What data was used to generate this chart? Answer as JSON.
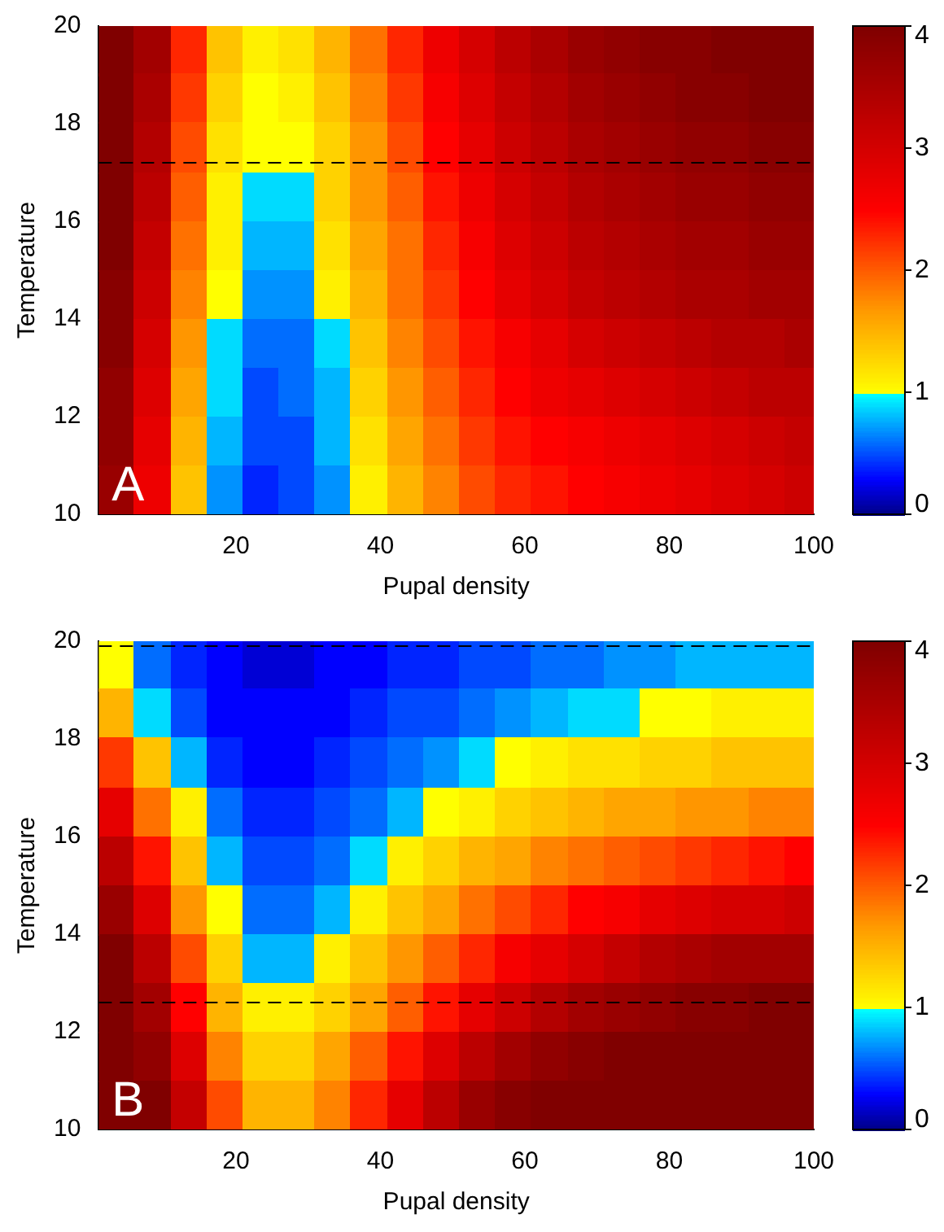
{
  "chart_data": [
    {
      "type": "heatmap",
      "xlabel": "Pupal density",
      "ylabel": "Temperature",
      "annotations": [
        "A"
      ],
      "x": [
        3.5,
        8.5,
        13.5,
        18.5,
        23.5,
        28.5,
        33.5,
        38.5,
        43.5,
        48.5,
        53.5,
        58.5,
        63.5,
        68.5,
        73.5,
        78.5,
        83.5,
        88.5,
        93.5,
        98.5
      ],
      "y": [
        19.5,
        18.5,
        17.5,
        16.5,
        15.5,
        14.5,
        13.5,
        12.5,
        11.5,
        10.5
      ],
      "cells": [
        [
          4,
          3.6,
          2.3,
          1.4,
          1.1,
          1.2,
          1.5,
          1.9,
          2.3,
          2.7,
          3.0,
          3.3,
          3.5,
          3.7,
          3.8,
          3.9,
          3.9,
          4,
          4,
          4
        ],
        [
          4,
          3.5,
          2.2,
          1.3,
          1.0,
          1.1,
          1.4,
          1.8,
          2.2,
          2.6,
          2.9,
          3.2,
          3.4,
          3.6,
          3.7,
          3.8,
          3.9,
          3.9,
          4,
          4
        ],
        [
          4,
          3.4,
          2.1,
          1.2,
          1.0,
          1.0,
          1.3,
          1.7,
          2.1,
          2.5,
          2.8,
          3.1,
          3.3,
          3.5,
          3.6,
          3.7,
          3.8,
          3.8,
          3.9,
          3.9
        ],
        [
          4,
          3.3,
          2.0,
          1.1,
          0.9,
          0.9,
          1.3,
          1.7,
          2.0,
          2.4,
          2.7,
          3.0,
          3.2,
          3.4,
          3.5,
          3.6,
          3.7,
          3.7,
          3.8,
          3.8
        ],
        [
          4,
          3.2,
          1.9,
          1.1,
          0.8,
          0.8,
          1.2,
          1.6,
          1.9,
          2.3,
          2.6,
          2.9,
          3.1,
          3.3,
          3.4,
          3.5,
          3.6,
          3.6,
          3.7,
          3.7
        ],
        [
          3.9,
          3.1,
          1.8,
          1.0,
          0.7,
          0.7,
          1.1,
          1.5,
          1.9,
          2.2,
          2.5,
          2.8,
          3.0,
          3.2,
          3.3,
          3.4,
          3.5,
          3.5,
          3.6,
          3.6
        ],
        [
          3.9,
          3.0,
          1.7,
          0.9,
          0.6,
          0.6,
          0.9,
          1.4,
          1.8,
          2.1,
          2.4,
          2.6,
          2.8,
          3.0,
          3.1,
          3.2,
          3.3,
          3.4,
          3.4,
          3.5
        ],
        [
          3.8,
          2.9,
          1.6,
          0.9,
          0.5,
          0.6,
          0.8,
          1.3,
          1.7,
          2.0,
          2.3,
          2.5,
          2.7,
          2.8,
          2.9,
          3.0,
          3.1,
          3.2,
          3.3,
          3.3
        ],
        [
          3.8,
          2.8,
          1.5,
          0.8,
          0.5,
          0.5,
          0.8,
          1.2,
          1.6,
          1.9,
          2.2,
          2.4,
          2.5,
          2.6,
          2.7,
          2.8,
          2.9,
          3.0,
          3.1,
          3.2
        ],
        [
          3.7,
          2.7,
          1.4,
          0.7,
          0.4,
          0.5,
          0.7,
          1.1,
          1.5,
          1.8,
          2.1,
          2.3,
          2.4,
          2.5,
          2.6,
          2.7,
          2.8,
          2.9,
          3.0,
          3.1
        ]
      ],
      "xlim": [
        1,
        100
      ],
      "xticks": [
        20,
        40,
        60,
        80,
        100
      ],
      "ylim": [
        10,
        20
      ],
      "yticks": [
        10,
        12,
        14,
        16,
        18,
        20
      ],
      "clim": [
        0,
        4
      ],
      "cticks": [
        0,
        1,
        2,
        3,
        4
      ],
      "ref_lines": [
        {
          "axis": "y",
          "value": 17.2,
          "line_style": "dashed",
          "color": "#000000"
        }
      ]
    },
    {
      "type": "heatmap",
      "xlabel": "Pupal density",
      "ylabel": "Temperature",
      "annotations": [
        "B"
      ],
      "x": [
        3.5,
        8.5,
        13.5,
        18.5,
        23.5,
        28.5,
        33.5,
        38.5,
        43.5,
        48.5,
        53.5,
        58.5,
        63.5,
        68.5,
        73.5,
        78.5,
        83.5,
        88.5,
        93.5,
        98.5
      ],
      "y": [
        19.5,
        18.5,
        17.5,
        16.5,
        15.5,
        14.5,
        13.5,
        12.5,
        11.5,
        10.5
      ],
      "cells": [
        [
          1.0,
          0.6,
          0.4,
          0.3,
          0.2,
          0.2,
          0.3,
          0.3,
          0.4,
          0.4,
          0.5,
          0.5,
          0.6,
          0.6,
          0.7,
          0.7,
          0.8,
          0.8,
          0.8,
          0.8
        ],
        [
          1.5,
          0.9,
          0.5,
          0.3,
          0.3,
          0.3,
          0.3,
          0.4,
          0.5,
          0.5,
          0.6,
          0.7,
          0.8,
          0.9,
          0.9,
          1.0,
          1.0,
          1.1,
          1.1,
          1.1
        ],
        [
          2.2,
          1.4,
          0.8,
          0.4,
          0.3,
          0.3,
          0.4,
          0.5,
          0.6,
          0.7,
          0.9,
          1.0,
          1.1,
          1.2,
          1.2,
          1.3,
          1.3,
          1.4,
          1.4,
          1.4
        ],
        [
          2.8,
          1.9,
          1.1,
          0.6,
          0.4,
          0.4,
          0.5,
          0.6,
          0.8,
          1.0,
          1.1,
          1.3,
          1.4,
          1.5,
          1.6,
          1.6,
          1.7,
          1.7,
          1.8,
          1.8
        ],
        [
          3.3,
          2.4,
          1.4,
          0.8,
          0.5,
          0.5,
          0.6,
          0.9,
          1.1,
          1.3,
          1.5,
          1.6,
          1.8,
          1.9,
          2.0,
          2.1,
          2.2,
          2.3,
          2.4,
          2.5
        ],
        [
          3.7,
          2.9,
          1.7,
          1.0,
          0.6,
          0.6,
          0.8,
          1.1,
          1.4,
          1.6,
          1.9,
          2.1,
          2.3,
          2.5,
          2.6,
          2.8,
          2.9,
          3.0,
          3.0,
          3.1
        ],
        [
          4,
          3.3,
          2.1,
          1.3,
          0.8,
          0.8,
          1.1,
          1.4,
          1.7,
          2.0,
          2.3,
          2.6,
          2.8,
          3.0,
          3.2,
          3.4,
          3.5,
          3.6,
          3.6,
          3.6
        ],
        [
          4,
          3.6,
          2.5,
          1.5,
          1.1,
          1.1,
          1.3,
          1.6,
          2.0,
          2.4,
          2.8,
          3.1,
          3.4,
          3.6,
          3.7,
          3.8,
          3.9,
          3.9,
          4,
          4
        ],
        [
          4,
          3.8,
          2.9,
          1.8,
          1.3,
          1.3,
          1.6,
          2.0,
          2.4,
          2.9,
          3.3,
          3.6,
          3.8,
          3.9,
          4,
          4,
          4,
          4,
          4,
          4
        ],
        [
          4,
          4,
          3.2,
          2.1,
          1.5,
          1.5,
          1.8,
          2.3,
          2.8,
          3.3,
          3.7,
          3.9,
          4,
          4,
          4,
          4,
          4,
          4,
          4,
          4
        ]
      ],
      "xlim": [
        1,
        100
      ],
      "xticks": [
        20,
        40,
        60,
        80,
        100
      ],
      "ylim": [
        10,
        20
      ],
      "yticks": [
        10,
        12,
        14,
        16,
        18,
        20
      ],
      "clim": [
        0,
        4
      ],
      "cticks": [
        0,
        1,
        2,
        3,
        4
      ],
      "ref_lines": [
        {
          "axis": "y",
          "value": 12.6,
          "line_style": "dashed",
          "color": "#000000"
        },
        {
          "axis": "y",
          "value": 19.9,
          "line_style": "dashed",
          "color": "#000000"
        }
      ]
    }
  ]
}
